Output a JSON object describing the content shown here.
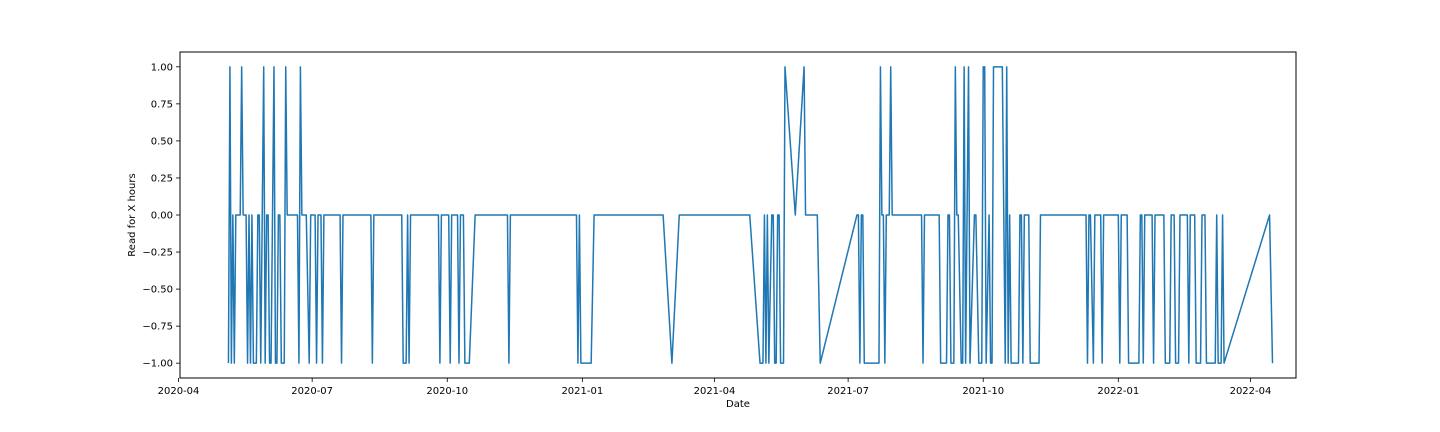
{
  "chart_data": {
    "type": "line",
    "title": "",
    "xlabel": "Date",
    "ylabel": "Read for X hours",
    "x_axis_type": "date",
    "xlim": [
      "2020-04-02",
      "2022-05-02"
    ],
    "ylim": [
      -1.1,
      1.1
    ],
    "grid": false,
    "legend": "none",
    "line_color": "#1f77b4",
    "x_ticks": [
      "2020-04-01",
      "2020-07-01",
      "2020-10-01",
      "2021-01-01",
      "2021-04-01",
      "2021-07-01",
      "2021-10-01",
      "2022-01-01",
      "2022-04-01"
    ],
    "x_tick_labels": [
      "2020-04",
      "2020-07",
      "2020-10",
      "2021-01",
      "2021-04",
      "2021-07",
      "2021-10",
      "2022-01",
      "2022-04"
    ],
    "y_ticks": [
      1.0,
      0.75,
      0.5,
      0.25,
      0.0,
      -0.25,
      -0.5,
      -0.75,
      -1.0
    ],
    "y_tick_labels": [
      "1.00",
      "0.75",
      "0.50",
      "0.25",
      "0.00",
      "−0.25",
      "−0.50",
      "−0.75",
      "−1.00"
    ],
    "series": [
      {
        "points": [
          [
            "2020-05-05",
            -1
          ],
          [
            "2020-05-06",
            1
          ],
          [
            "2020-05-07",
            -1
          ],
          [
            "2020-05-08",
            0
          ],
          [
            "2020-05-09",
            -1
          ],
          [
            "2020-05-10",
            0
          ],
          [
            "2020-05-12",
            0
          ],
          [
            "2020-05-13",
            0
          ],
          [
            "2020-05-14",
            1
          ],
          [
            "2020-05-15",
            0
          ],
          [
            "2020-05-17",
            0
          ],
          [
            "2020-05-18",
            -1
          ],
          [
            "2020-05-19",
            0
          ],
          [
            "2020-05-20",
            -1
          ],
          [
            "2020-05-21",
            0
          ],
          [
            "2020-05-22",
            -1
          ],
          [
            "2020-05-24",
            -1
          ],
          [
            "2020-05-25",
            0
          ],
          [
            "2020-05-26",
            0
          ],
          [
            "2020-05-27",
            -1
          ],
          [
            "2020-05-28",
            0
          ],
          [
            "2020-05-29",
            1
          ],
          [
            "2020-05-30",
            -1
          ],
          [
            "2020-05-31",
            0
          ],
          [
            "2020-06-01",
            0
          ],
          [
            "2020-06-02",
            -1
          ],
          [
            "2020-06-03",
            -1
          ],
          [
            "2020-06-04",
            0
          ],
          [
            "2020-06-05",
            1
          ],
          [
            "2020-06-06",
            -1
          ],
          [
            "2020-06-07",
            -1
          ],
          [
            "2020-06-08",
            0
          ],
          [
            "2020-06-09",
            0
          ],
          [
            "2020-06-10",
            -1
          ],
          [
            "2020-06-12",
            -1
          ],
          [
            "2020-06-13",
            1
          ],
          [
            "2020-06-14",
            0
          ],
          [
            "2020-06-16",
            0
          ],
          [
            "2020-06-17",
            0
          ],
          [
            "2020-06-18",
            0
          ],
          [
            "2020-06-21",
            0
          ],
          [
            "2020-06-22",
            -1
          ],
          [
            "2020-06-23",
            1
          ],
          [
            "2020-06-24",
            0
          ],
          [
            "2020-06-27",
            0
          ],
          [
            "2020-06-29",
            -1
          ],
          [
            "2020-06-30",
            0
          ],
          [
            "2020-07-01",
            0
          ],
          [
            "2020-07-03",
            0
          ],
          [
            "2020-07-04",
            -1
          ],
          [
            "2020-07-05",
            0
          ],
          [
            "2020-07-07",
            0
          ],
          [
            "2020-07-08",
            -1
          ],
          [
            "2020-07-09",
            0
          ],
          [
            "2020-07-20",
            0
          ],
          [
            "2020-07-21",
            -1
          ],
          [
            "2020-07-22",
            0
          ],
          [
            "2020-08-10",
            0
          ],
          [
            "2020-08-11",
            -1
          ],
          [
            "2020-08-12",
            0
          ],
          [
            "2020-08-31",
            0
          ],
          [
            "2020-09-01",
            -1
          ],
          [
            "2020-09-03",
            -1
          ],
          [
            "2020-09-04",
            0
          ],
          [
            "2020-09-05",
            -1
          ],
          [
            "2020-09-06",
            0
          ],
          [
            "2020-09-25",
            0
          ],
          [
            "2020-09-26",
            -1
          ],
          [
            "2020-09-27",
            0
          ],
          [
            "2020-10-02",
            0
          ],
          [
            "2020-10-03",
            -1
          ],
          [
            "2020-10-04",
            0
          ],
          [
            "2020-10-08",
            0
          ],
          [
            "2020-10-09",
            -1
          ],
          [
            "2020-10-10",
            0
          ],
          [
            "2020-10-12",
            0
          ],
          [
            "2020-10-13",
            -1
          ],
          [
            "2020-10-16",
            -1
          ],
          [
            "2020-10-20",
            0
          ],
          [
            "2020-11-11",
            0
          ],
          [
            "2020-11-12",
            -1
          ],
          [
            "2020-11-13",
            0
          ],
          [
            "2020-12-28",
            0
          ],
          [
            "2020-12-29",
            -1
          ],
          [
            "2020-12-30",
            0
          ],
          [
            "2020-12-31",
            -1
          ],
          [
            "2021-01-07",
            -1
          ],
          [
            "2021-01-09",
            0
          ],
          [
            "2021-02-25",
            0
          ],
          [
            "2021-03-03",
            -1
          ],
          [
            "2021-03-08",
            0
          ],
          [
            "2021-04-25",
            0
          ],
          [
            "2021-05-02",
            -1
          ],
          [
            "2021-05-04",
            -1
          ],
          [
            "2021-05-05",
            0
          ],
          [
            "2021-05-06",
            -1
          ],
          [
            "2021-05-07",
            0
          ],
          [
            "2021-05-08",
            -1
          ],
          [
            "2021-05-10",
            0
          ],
          [
            "2021-05-11",
            0
          ],
          [
            "2021-05-12",
            -1
          ],
          [
            "2021-05-13",
            -1
          ],
          [
            "2021-05-14",
            0
          ],
          [
            "2021-05-15",
            0
          ],
          [
            "2021-05-16",
            -1
          ],
          [
            "2021-05-18",
            -1
          ],
          [
            "2021-05-19",
            1
          ],
          [
            "2021-05-26",
            0
          ],
          [
            "2021-06-01",
            1
          ],
          [
            "2021-06-02",
            0
          ],
          [
            "2021-06-10",
            0
          ],
          [
            "2021-06-12",
            -1
          ],
          [
            "2021-07-07",
            0
          ],
          [
            "2021-07-08",
            0
          ],
          [
            "2021-07-09",
            -1
          ],
          [
            "2021-07-10",
            0
          ],
          [
            "2021-07-11",
            0
          ],
          [
            "2021-07-12",
            -1
          ],
          [
            "2021-07-22",
            -1
          ],
          [
            "2021-07-23",
            1
          ],
          [
            "2021-07-24",
            0
          ],
          [
            "2021-07-25",
            0
          ],
          [
            "2021-07-26",
            -1
          ],
          [
            "2021-07-27",
            0
          ],
          [
            "2021-07-29",
            0
          ],
          [
            "2021-07-30",
            1
          ],
          [
            "2021-07-31",
            0
          ],
          [
            "2021-08-20",
            0
          ],
          [
            "2021-08-21",
            -1
          ],
          [
            "2021-08-22",
            0
          ],
          [
            "2021-09-01",
            0
          ],
          [
            "2021-09-02",
            -1
          ],
          [
            "2021-09-06",
            -1
          ],
          [
            "2021-09-07",
            0
          ],
          [
            "2021-09-08",
            0
          ],
          [
            "2021-09-09",
            -1
          ],
          [
            "2021-09-11",
            -1
          ],
          [
            "2021-09-12",
            1
          ],
          [
            "2021-09-13",
            0
          ],
          [
            "2021-09-14",
            0
          ],
          [
            "2021-09-16",
            -1
          ],
          [
            "2021-09-17",
            -1
          ],
          [
            "2021-09-18",
            1
          ],
          [
            "2021-09-19",
            -1
          ],
          [
            "2021-09-20",
            0
          ],
          [
            "2021-09-21",
            1
          ],
          [
            "2021-09-22",
            -1
          ],
          [
            "2021-09-25",
            0
          ],
          [
            "2021-09-26",
            0
          ],
          [
            "2021-09-28",
            -1
          ],
          [
            "2021-09-30",
            -1
          ],
          [
            "2021-10-01",
            1
          ],
          [
            "2021-10-02",
            1
          ],
          [
            "2021-10-03",
            -1
          ],
          [
            "2021-10-05",
            0
          ],
          [
            "2021-10-06",
            -1
          ],
          [
            "2021-10-07",
            -1
          ],
          [
            "2021-10-08",
            1
          ],
          [
            "2021-10-09",
            1
          ],
          [
            "2021-10-10",
            1
          ],
          [
            "2021-10-14",
            1
          ],
          [
            "2021-10-15",
            0
          ],
          [
            "2021-10-16",
            -1
          ],
          [
            "2021-10-17",
            1
          ],
          [
            "2021-10-18",
            -1
          ],
          [
            "2021-10-19",
            0
          ],
          [
            "2021-10-20",
            -1
          ],
          [
            "2021-10-25",
            -1
          ],
          [
            "2021-10-26",
            0
          ],
          [
            "2021-10-27",
            0
          ],
          [
            "2021-10-28",
            -1
          ],
          [
            "2021-10-29",
            0
          ],
          [
            "2021-11-01",
            0
          ],
          [
            "2021-11-02",
            -1
          ],
          [
            "2021-11-08",
            -1
          ],
          [
            "2021-11-09",
            0
          ],
          [
            "2021-12-10",
            0
          ],
          [
            "2021-12-11",
            -1
          ],
          [
            "2021-12-12",
            0
          ],
          [
            "2021-12-13",
            0
          ],
          [
            "2021-12-15",
            -1
          ],
          [
            "2021-12-16",
            0
          ],
          [
            "2021-12-20",
            0
          ],
          [
            "2021-12-21",
            -1
          ],
          [
            "2021-12-22",
            0
          ],
          [
            "2022-01-01",
            0
          ],
          [
            "2022-01-02",
            -1
          ],
          [
            "2022-01-03",
            0
          ],
          [
            "2022-01-07",
            0
          ],
          [
            "2022-01-08",
            -1
          ],
          [
            "2022-01-15",
            -1
          ],
          [
            "2022-01-16",
            0
          ],
          [
            "2022-01-17",
            0
          ],
          [
            "2022-01-18",
            -1
          ],
          [
            "2022-01-19",
            0
          ],
          [
            "2022-01-24",
            0
          ],
          [
            "2022-01-25",
            -1
          ],
          [
            "2022-01-26",
            0
          ],
          [
            "2022-02-01",
            0
          ],
          [
            "2022-02-02",
            -1
          ],
          [
            "2022-02-05",
            -1
          ],
          [
            "2022-02-06",
            0
          ],
          [
            "2022-02-08",
            0
          ],
          [
            "2022-02-09",
            -1
          ],
          [
            "2022-02-11",
            -1
          ],
          [
            "2022-02-12",
            0
          ],
          [
            "2022-02-17",
            0
          ],
          [
            "2022-02-18",
            -1
          ],
          [
            "2022-02-19",
            0
          ],
          [
            "2022-02-22",
            0
          ],
          [
            "2022-02-23",
            -1
          ],
          [
            "2022-02-26",
            -1
          ],
          [
            "2022-02-27",
            0
          ],
          [
            "2022-03-01",
            0
          ],
          [
            "2022-03-02",
            -1
          ],
          [
            "2022-03-08",
            -1
          ],
          [
            "2022-03-09",
            0
          ],
          [
            "2022-03-10",
            -1
          ],
          [
            "2022-03-12",
            -1
          ],
          [
            "2022-03-13",
            0
          ],
          [
            "2022-03-14",
            -1
          ],
          [
            "2022-04-14",
            0
          ],
          [
            "2022-04-16",
            -1
          ]
        ]
      }
    ]
  }
}
